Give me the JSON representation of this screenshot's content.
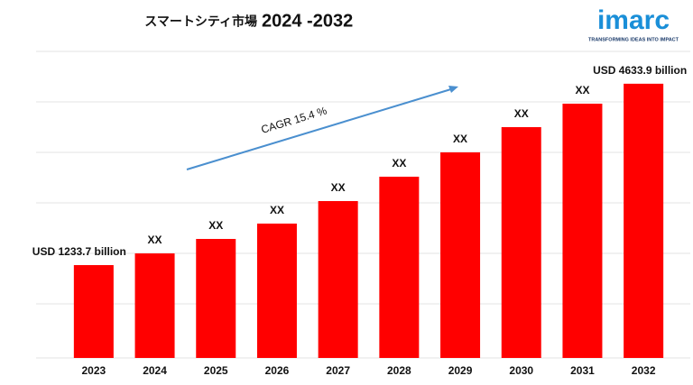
{
  "chart_data": {
    "type": "bar",
    "title": "スマートシティ市場",
    "title_years": "2024 -2032",
    "annotation": "CAGR 15.4 %",
    "logo": "imarc",
    "logo_tagline": "TRANSFORMING IDEAS INTO IMPACT",
    "categories": [
      "2023",
      "2024",
      "2025",
      "2026",
      "2027",
      "2028",
      "2029",
      "2030",
      "2031",
      "2032"
    ],
    "values": [
      1233.7,
      1453,
      1724,
      2012,
      2434,
      2891,
      3347,
      3820,
      4260,
      4633.9
    ],
    "value_labels": [
      "USD 1233.7 billion",
      "XX",
      "XX",
      "XX",
      "XX",
      "XX",
      "XX",
      "XX",
      "XX",
      "USD 4633.9 billion"
    ],
    "color": "#ff0000",
    "ylim": [
      -507,
      5240
    ]
  }
}
